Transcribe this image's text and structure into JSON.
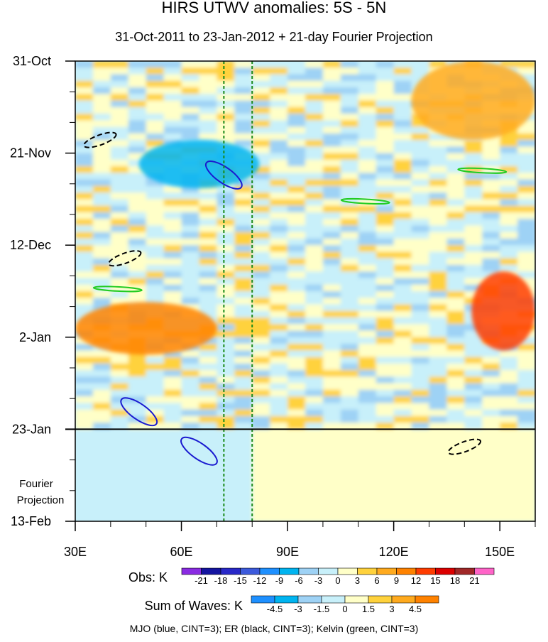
{
  "chart_data": {
    "type": "heatmap",
    "title": "HIRS UTWV anomalies: 5S - 5N",
    "subtitle": "31-Oct-2011 to 23-Jan-2012 + 21-day Fourier Projection",
    "x_axis": {
      "label": "",
      "range": [
        30,
        160
      ],
      "ticks": [
        {
          "value": 30,
          "label": "30E"
        },
        {
          "value": 60,
          "label": "60E"
        },
        {
          "value": 90,
          "label": "90E"
        },
        {
          "value": 120,
          "label": "120E"
        },
        {
          "value": 150,
          "label": "150E"
        }
      ]
    },
    "y_axis": {
      "label": "",
      "range_days": [
        0,
        105
      ],
      "ticks": [
        {
          "value": 0,
          "label": "31-Oct"
        },
        {
          "value": 21,
          "label": "21-Nov"
        },
        {
          "value": 42,
          "label": "12-Dec"
        },
        {
          "value": 63,
          "label": "2-Jan"
        },
        {
          "value": 84,
          "label": "23-Jan"
        },
        {
          "value": 105,
          "label": "13-Feb"
        }
      ],
      "inverted": true
    },
    "forecast_start_day": 84,
    "projection_label": [
      "Fourier",
      "Projection"
    ],
    "reference_lines_lon": [
      72,
      80
    ],
    "obs_legend": {
      "title": "Obs: K",
      "labels": [
        "-21",
        "-18",
        "-15",
        "-12",
        "-9",
        "-6",
        "-3",
        "0",
        "3",
        "6",
        "9",
        "12",
        "15",
        "18",
        "21"
      ],
      "colors": [
        "#8a2be2",
        "#1414a0",
        "#2828c8",
        "#3c5adc",
        "#1e90ff",
        "#00b4f0",
        "#9ed2f5",
        "#c8f0fa",
        "#ffffc8",
        "#ffd23c",
        "#ffaa1e",
        "#ff8200",
        "#ff3c00",
        "#dc0000",
        "#a02828",
        "#ff64c8"
      ]
    },
    "waves_legend": {
      "title": "Sum of Waves: K",
      "labels": [
        "-4.5",
        "-3",
        "-1.5",
        "0",
        "1.5",
        "3",
        "4.5"
      ],
      "colors": [
        "#1e90ff",
        "#00b4f0",
        "#9ed2f5",
        "#c8f0fa",
        "#ffffc8",
        "#ffd23c",
        "#ffaa1e",
        "#ff8200"
      ]
    },
    "contour_note": "MJO (blue, CINT=3); ER (black, CINT=3); Kelvin (green, CINT=3)",
    "anomaly_features": [
      {
        "lon_range": [
          48,
          82
        ],
        "day_range": [
          18,
          29
        ],
        "value": -9,
        "note": "strong negative band near 21-Nov to 26-Nov"
      },
      {
        "lon_range": [
          30,
          70
        ],
        "day_range": [
          55,
          67
        ],
        "value": 9,
        "note": "positive band around 2-Jan"
      },
      {
        "lon_range": [
          142,
          160
        ],
        "day_range": [
          48,
          66
        ],
        "value": 12,
        "note": "positive east edge late Dec"
      },
      {
        "lon_range": [
          125,
          160
        ],
        "day_range": [
          0,
          18
        ],
        "value": 6,
        "note": "positive region early Nov"
      }
    ],
    "contours": {
      "mjo": [
        {
          "center": [
            72,
            26
          ],
          "note": "negative ellipse late Nov"
        },
        {
          "center": [
            48,
            80
          ],
          "note": "negative ellipse mid Jan"
        },
        {
          "center": [
            65,
            89
          ],
          "note": "projection ellipse"
        }
      ],
      "er": [
        {
          "center": [
            37,
            18
          ],
          "note": "dashed negative"
        },
        {
          "center": [
            44,
            45
          ],
          "note": "dashed negative"
        },
        {
          "center": [
            140,
            88
          ],
          "note": "dashed negative projection"
        }
      ],
      "kelvin": [
        {
          "center": [
            145,
            25
          ],
          "note": "green band"
        },
        {
          "center": [
            112,
            32
          ],
          "note": "green band"
        },
        {
          "center": [
            42,
            52
          ],
          "note": "green band"
        }
      ]
    }
  }
}
